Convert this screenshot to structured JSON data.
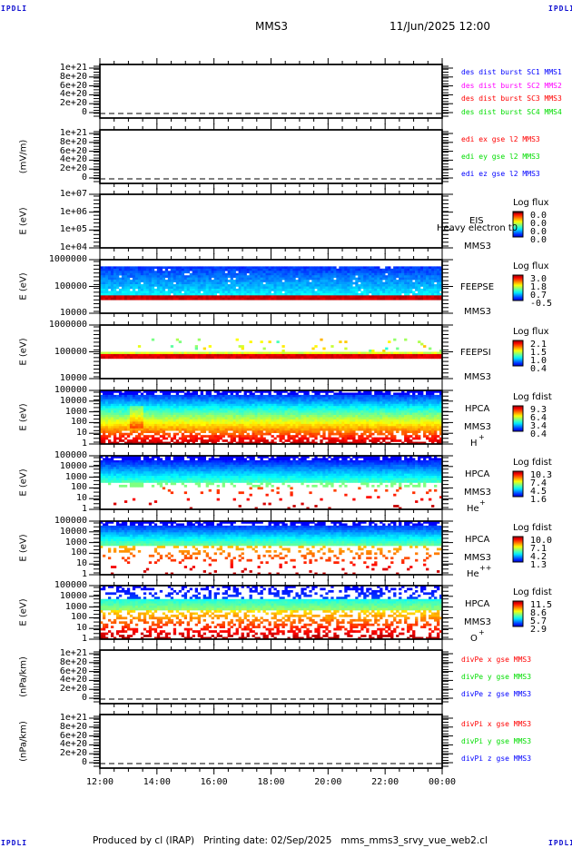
{
  "header": {
    "corner_left": "IPDLI",
    "corner_right": "IPDLI",
    "spacecraft": "MMS3",
    "datetime": "11/Jun/2025 12:00"
  },
  "footer": {
    "text": "Produced by cl (IRAP)   Printing date: 02/Sep/2025   mms_mms3_srvy_vue_web2.cl",
    "corner_left": "IPDLI",
    "corner_right": "IPDLI"
  },
  "colors": {
    "blue": "#0000ff",
    "magenta": "#ff00ff",
    "red": "#ff0000",
    "green": "#00dd00"
  },
  "chart_data": {
    "type": "heatmap",
    "xlabel": "",
    "x_ticks": [
      "12:00",
      "14:00",
      "16:00",
      "18:00",
      "20:00",
      "22:00",
      "00:00"
    ],
    "xlim": [
      "11/Jun/2025 12:00",
      "12/Jun/2025 00:00"
    ],
    "panels": [
      {
        "id": "des-dist",
        "kind": "line",
        "ylabel": "",
        "yticks": [
          "1e+21",
          "8e+20",
          "6e+20",
          "4e+20",
          "2e+20",
          "0"
        ],
        "ylim": [
          0,
          1e+21
        ],
        "zero_line": true,
        "legend": [
          {
            "text": "des dist burst SC1 MMS1",
            "color": "#0000ff"
          },
          {
            "text": "des dist burst SC2 MMS2",
            "color": "#ff00ff"
          },
          {
            "text": "des dist burst SC3 MMS3",
            "color": "#ff0000"
          },
          {
            "text": "des dist burst SC4 MMS4",
            "color": "#00dd00"
          }
        ]
      },
      {
        "id": "edi",
        "kind": "line",
        "ylabel": "(mV/m)",
        "yticks": [
          "1e+21",
          "8e+20",
          "6e+20",
          "4e+20",
          "2e+20",
          "0"
        ],
        "ylim": [
          0,
          1e+21
        ],
        "zero_line": true,
        "legend": [
          {
            "text": "edi ex gse l2 MMS3",
            "color": "#ff0000"
          },
          {
            "text": "edi ey gse l2 MMS3",
            "color": "#00dd00"
          },
          {
            "text": "edi ez gse l2 MMS3",
            "color": "#0000ff"
          }
        ]
      },
      {
        "id": "eis",
        "kind": "spectrogram",
        "ylabel": "E (eV)",
        "yticks": [
          "1e+07",
          "1e+06",
          "1e+05",
          "1e+04"
        ],
        "ylim": [
          10000.0,
          10000000.0
        ],
        "side_labels": [
          "EIS",
          "Heavy electron t0",
          "MMS3"
        ],
        "colorbar": {
          "title": "Log flux",
          "values": [
            "0.0",
            "0.0",
            "0.0",
            "0.0"
          ]
        },
        "profile": "empty"
      },
      {
        "id": "feepse",
        "kind": "spectrogram",
        "ylabel": "E (eV)",
        "yticks": [
          "1000000",
          "100000",
          "10000"
        ],
        "ylim": [
          10000.0,
          1000000.0
        ],
        "side_labels": [
          "FEEPSE",
          "MMS3"
        ],
        "colorbar": {
          "title": "Log flux",
          "values": [
            "3.0",
            "1.8",
            "0.7",
            "-0.5"
          ]
        },
        "profile": "feepse"
      },
      {
        "id": "feepsi",
        "kind": "spectrogram",
        "ylabel": "E (eV)",
        "yticks": [
          "1000000",
          "100000",
          "10000"
        ],
        "ylim": [
          10000.0,
          1000000.0
        ],
        "side_labels": [
          "FEEPSI",
          "MMS3"
        ],
        "colorbar": {
          "title": "Log flux",
          "values": [
            "2.1",
            "1.5",
            "1.0",
            "0.4"
          ]
        },
        "profile": "feepsi"
      },
      {
        "id": "hpca-h",
        "kind": "spectrogram",
        "ylabel": "E (eV)",
        "yticks": [
          "100000",
          "10000",
          "1000",
          "100",
          "10",
          "1"
        ],
        "ylim": [
          1,
          100000.0
        ],
        "side_labels": [
          "HPCA",
          "MMS3",
          "H",
          "+"
        ],
        "colorbar": {
          "title": "Log fdist",
          "values": [
            "9.3",
            "6.4",
            "3.4",
            "0.4"
          ]
        },
        "profile": "h"
      },
      {
        "id": "hpca-he",
        "kind": "spectrogram",
        "ylabel": "E (eV)",
        "yticks": [
          "100000",
          "10000",
          "1000",
          "100",
          "10",
          "1"
        ],
        "ylim": [
          1,
          100000.0
        ],
        "side_labels": [
          "HPCA",
          "MMS3",
          "He",
          "+"
        ],
        "colorbar": {
          "title": "Log fdist",
          "values": [
            "10.3",
            "7.4",
            "4.5",
            "1.6"
          ]
        },
        "profile": "he"
      },
      {
        "id": "hpca-hepp",
        "kind": "spectrogram",
        "ylabel": "E (eV)",
        "yticks": [
          "100000",
          "10000",
          "1000",
          "100",
          "10",
          "1"
        ],
        "ylim": [
          1,
          100000.0
        ],
        "side_labels": [
          "HPCA",
          "MMS3",
          "He",
          "++"
        ],
        "colorbar": {
          "title": "Log fdist",
          "values": [
            "10.0",
            "7.1",
            "4.2",
            "1.3"
          ]
        },
        "profile": "hepp"
      },
      {
        "id": "hpca-o",
        "kind": "spectrogram",
        "ylabel": "E (eV)",
        "yticks": [
          "100000",
          "10000",
          "1000",
          "100",
          "10",
          "1"
        ],
        "ylim": [
          1,
          100000.0
        ],
        "side_labels": [
          "HPCA",
          "MMS3",
          "O",
          "+"
        ],
        "colorbar": {
          "title": "Log fdist",
          "values": [
            "11.5",
            "8.6",
            "5.7",
            "2.9"
          ]
        },
        "profile": "o"
      },
      {
        "id": "divpe",
        "kind": "line",
        "ylabel": "(nPa/km)",
        "yticks": [
          "1e+21",
          "8e+20",
          "6e+20",
          "4e+20",
          "2e+20",
          "0"
        ],
        "ylim": [
          0,
          1e+21
        ],
        "zero_line": true,
        "legend": [
          {
            "text": "divPe x gse MMS3",
            "color": "#ff0000"
          },
          {
            "text": "divPe y gse MMS3",
            "color": "#00dd00"
          },
          {
            "text": "divPe z gse MMS3",
            "color": "#0000ff"
          }
        ]
      },
      {
        "id": "divpi",
        "kind": "line",
        "ylabel": "(nPa/km)",
        "yticks": [
          "1e+21",
          "8e+20",
          "6e+20",
          "4e+20",
          "2e+20",
          "0"
        ],
        "ylim": [
          0,
          1e+21
        ],
        "zero_line": true,
        "legend": [
          {
            "text": "divPi x gse MMS3",
            "color": "#ff0000"
          },
          {
            "text": "divPi y gse MMS3",
            "color": "#00dd00"
          },
          {
            "text": "divPi z gse MMS3",
            "color": "#0000ff"
          }
        ]
      }
    ]
  }
}
